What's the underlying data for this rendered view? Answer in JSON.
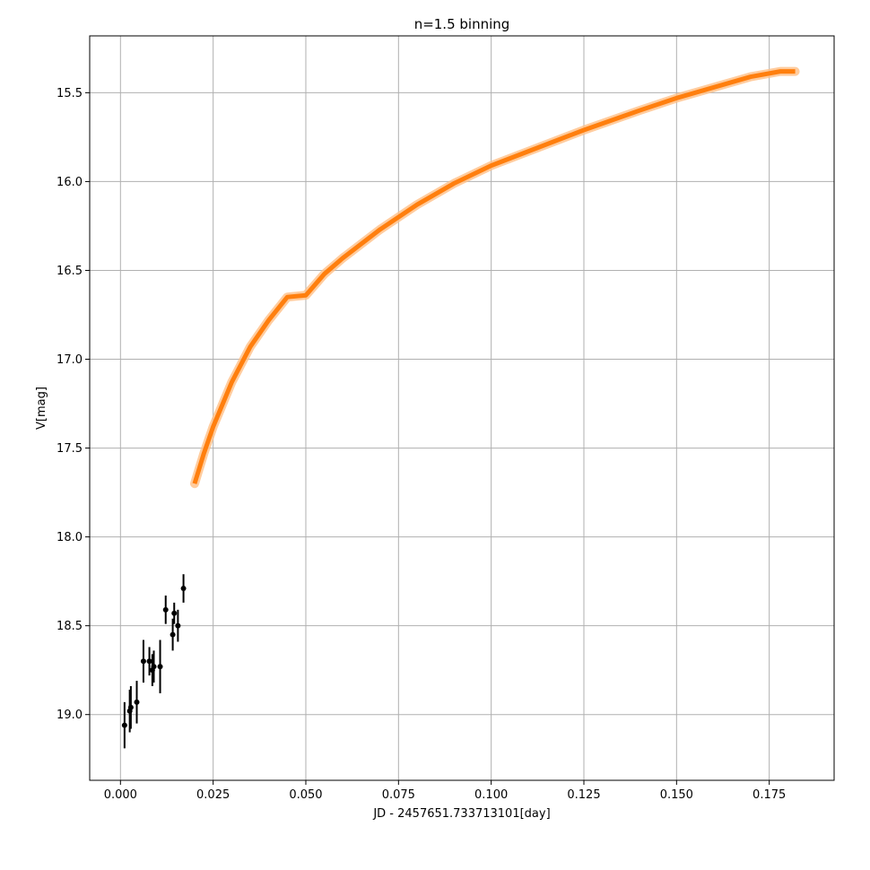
{
  "chart_data": {
    "type": "scatter",
    "title": "n=1.5 binning",
    "xlabel": "JD - 2457651.733713101[day]",
    "ylabel": "V[mag]",
    "xlim": [
      -0.0083,
      0.1925
    ],
    "ylim": [
      19.37,
      15.18
    ],
    "y_inverted": true,
    "grid": true,
    "xticks": [
      {
        "value": 0.0,
        "label": "0.000"
      },
      {
        "value": 0.025,
        "label": "0.025"
      },
      {
        "value": 0.05,
        "label": "0.050"
      },
      {
        "value": 0.075,
        "label": "0.075"
      },
      {
        "value": 0.1,
        "label": "0.100"
      },
      {
        "value": 0.125,
        "label": "0.125"
      },
      {
        "value": 0.15,
        "label": "0.150"
      },
      {
        "value": 0.175,
        "label": "0.175"
      }
    ],
    "yticks": [
      {
        "value": 15.5,
        "label": "15.5"
      },
      {
        "value": 16.0,
        "label": "16.0"
      },
      {
        "value": 16.5,
        "label": "16.5"
      },
      {
        "value": 17.0,
        "label": "17.0"
      },
      {
        "value": 17.5,
        "label": "17.5"
      },
      {
        "value": 18.0,
        "label": "18.0"
      },
      {
        "value": 18.5,
        "label": "18.5"
      },
      {
        "value": 19.0,
        "label": "19.0"
      }
    ],
    "observations": {
      "color": "#000000",
      "points": [
        {
          "x": 0.0011,
          "y": 19.06,
          "err": 0.13
        },
        {
          "x": 0.0025,
          "y": 18.98,
          "err": 0.12
        },
        {
          "x": 0.0028,
          "y": 18.96,
          "err": 0.12
        },
        {
          "x": 0.0044,
          "y": 18.93,
          "err": 0.12
        },
        {
          "x": 0.0062,
          "y": 18.7,
          "err": 0.12
        },
        {
          "x": 0.0078,
          "y": 18.7,
          "err": 0.08
        },
        {
          "x": 0.0086,
          "y": 18.75,
          "err": 0.09
        },
        {
          "x": 0.009,
          "y": 18.73,
          "err": 0.09
        },
        {
          "x": 0.0107,
          "y": 18.73,
          "err": 0.15
        },
        {
          "x": 0.0122,
          "y": 18.41,
          "err": 0.08
        },
        {
          "x": 0.0141,
          "y": 18.55,
          "err": 0.09
        },
        {
          "x": 0.0145,
          "y": 18.43,
          "err": 0.06
        },
        {
          "x": 0.0155,
          "y": 18.5,
          "err": 0.09
        },
        {
          "x": 0.017,
          "y": 18.29,
          "err": 0.08
        }
      ]
    },
    "model": {
      "color": "#ff7f0e",
      "band_color": "#ffbf86",
      "points": [
        {
          "x": 0.02,
          "y": 17.7
        },
        {
          "x": 0.0225,
          "y": 17.53
        },
        {
          "x": 0.025,
          "y": 17.38
        },
        {
          "x": 0.03,
          "y": 17.13
        },
        {
          "x": 0.035,
          "y": 16.93
        },
        {
          "x": 0.04,
          "y": 16.78
        },
        {
          "x": 0.045,
          "y": 16.65
        },
        {
          "x": 0.05,
          "y": 16.64
        },
        {
          "x": 0.055,
          "y": 16.52
        },
        {
          "x": 0.06,
          "y": 16.43
        },
        {
          "x": 0.07,
          "y": 16.27
        },
        {
          "x": 0.08,
          "y": 16.13
        },
        {
          "x": 0.09,
          "y": 16.01
        },
        {
          "x": 0.1,
          "y": 15.91
        },
        {
          "x": 0.11,
          "y": 15.83
        },
        {
          "x": 0.125,
          "y": 15.71
        },
        {
          "x": 0.14,
          "y": 15.6
        },
        {
          "x": 0.15,
          "y": 15.53
        },
        {
          "x": 0.16,
          "y": 15.47
        },
        {
          "x": 0.17,
          "y": 15.41
        },
        {
          "x": 0.178,
          "y": 15.38
        },
        {
          "x": 0.182,
          "y": 15.38
        }
      ]
    }
  }
}
